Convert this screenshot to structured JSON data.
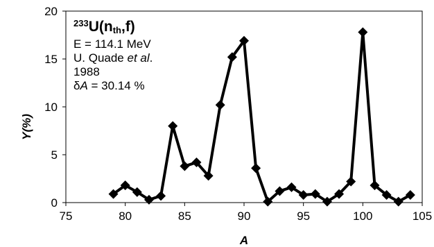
{
  "chart_data": {
    "type": "line",
    "xlabel": "A",
    "ylabel": "Y(%)",
    "xlim": [
      75,
      105
    ],
    "ylim": [
      0,
      20
    ],
    "xticks": [
      75,
      80,
      85,
      90,
      95,
      100,
      105
    ],
    "yticks": [
      0,
      5,
      10,
      15,
      20
    ],
    "grid": false,
    "annotation": {
      "nuclide_mass": "233",
      "nuclide": "U(n",
      "sub": "th",
      "tail": ",f)",
      "energy": "E = 114.1 MeV",
      "author_prefix": "U. Quade ",
      "author_italic": "et al",
      "author_suffix": ".",
      "year": "1988",
      "uncertainty_prefix": "δ",
      "uncertainty_var": "A",
      "uncertainty_value": " = 30.14 %"
    },
    "series": [
      {
        "color": "#000000",
        "marker": "diamond",
        "x": [
          79,
          80,
          81,
          82,
          83,
          84,
          85,
          86,
          87,
          88,
          89,
          90,
          91,
          92,
          93,
          94,
          95,
          96,
          97,
          98,
          99,
          100,
          101,
          102,
          103,
          104
        ],
        "values": [
          0.9,
          1.8,
          1.1,
          0.3,
          0.7,
          8.0,
          3.8,
          4.2,
          2.8,
          10.2,
          15.2,
          16.9,
          3.6,
          0.1,
          1.2,
          1.6,
          0.8,
          0.9,
          0.1,
          0.9,
          2.2,
          17.8,
          1.8,
          0.8,
          0.1,
          0.8
        ]
      }
    ]
  }
}
